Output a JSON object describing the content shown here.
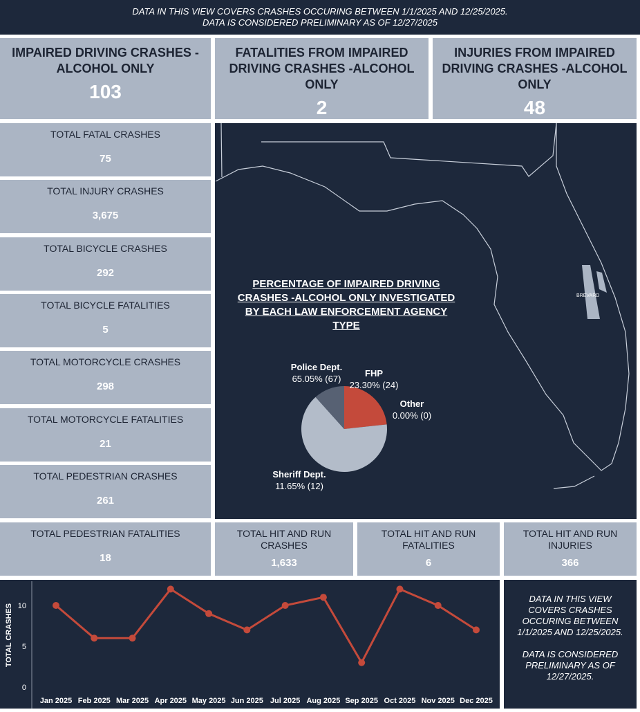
{
  "header": {
    "line1": "DATA IN THIS VIEW COVERS CRASHES OCCURING BETWEEN 1/1/2025 AND 12/25/2025.",
    "line2": "DATA IS CONSIDERED PRELIMINARY AS OF 12/27/2025"
  },
  "top_tiles": [
    {
      "title": "IMPAIRED DRIVING CRASHES - ALCOHOL ONLY",
      "value": "103"
    },
    {
      "title": "FATALITIES FROM IMPAIRED DRIVING CRASHES -ALCOHOL ONLY",
      "value": "2"
    },
    {
      "title": "INJURIES FROM IMPAIRED DRIVING CRASHES -ALCOHOL ONLY",
      "value": "48"
    }
  ],
  "left_tiles": [
    {
      "title": "TOTAL FATAL CRASHES",
      "value": "75"
    },
    {
      "title": "TOTAL INJURY CRASHES",
      "value": "3,675"
    },
    {
      "title": "TOTAL BICYCLE CRASHES",
      "value": "292"
    },
    {
      "title": "TOTAL BICYCLE FATALITIES",
      "value": "5"
    },
    {
      "title": "TOTAL MOTORCYCLE CRASHES",
      "value": "298"
    },
    {
      "title": "TOTAL MOTORCYCLE FATALITIES",
      "value": "21"
    },
    {
      "title": "TOTAL PEDESTRIAN CRASHES",
      "value": "261"
    }
  ],
  "bottom_tiles": [
    {
      "title": "TOTAL PEDESTRIAN FATALITIES",
      "value": "18"
    },
    {
      "title": "TOTAL HIT AND RUN CRASHES",
      "value": "1,633"
    },
    {
      "title": "TOTAL HIT AND RUN FATALITIES",
      "value": "6"
    },
    {
      "title": "TOTAL HIT AND RUN INJURIES",
      "value": "366"
    }
  ],
  "map": {
    "county_label": "BREVARD"
  },
  "colors": {
    "background": "#1d283b",
    "tile": "#abb5c4",
    "accent": "#c44a3b"
  },
  "note": {
    "line1": "DATA IN THIS VIEW COVERS CRASHES OCCURING BETWEEN 1/1/2025 AND 12/25/2025.",
    "line2": "DATA IS CONSIDERED PRELIMINARY AS OF 12/27/2025."
  },
  "chart_data": [
    {
      "type": "pie",
      "title": "PERCENTAGE OF IMPAIRED DRIVING CRASHES -ALCOHOL ONLY INVESTIGATED BY EACH LAW ENFORCEMENT AGENCY TYPE",
      "slices": [
        {
          "name": "FHP",
          "value": 24,
          "label": "23.30% (24)",
          "color": "#c44a3b"
        },
        {
          "name": "Other",
          "value": 0,
          "label": "0.00% (0)",
          "color": "#8a93a3"
        },
        {
          "name": "Police Dept.",
          "value": 67,
          "label": "65.05% (67)",
          "color": "#b3bcc9"
        },
        {
          "name": "Sheriff Dept.",
          "value": 12,
          "label": "11.65% (12)",
          "color": "#576173"
        }
      ]
    },
    {
      "type": "line",
      "ylabel": "TOTAL CRASHES",
      "ylim": [
        0,
        12
      ],
      "yticks": [
        "0",
        "5",
        "10"
      ],
      "categories": [
        "Jan 2025",
        "Feb 2025",
        "Mar 2025",
        "Apr 2025",
        "May 2025",
        "Jun 2025",
        "Jul 2025",
        "Aug 2025",
        "Sep 2025",
        "Oct 2025",
        "Nov 2025",
        "Dec 2025"
      ],
      "values": [
        10,
        6,
        6,
        12,
        9,
        7,
        10,
        11,
        3,
        12,
        10,
        7
      ],
      "color": "#c44a3b",
      "grid": false
    }
  ]
}
